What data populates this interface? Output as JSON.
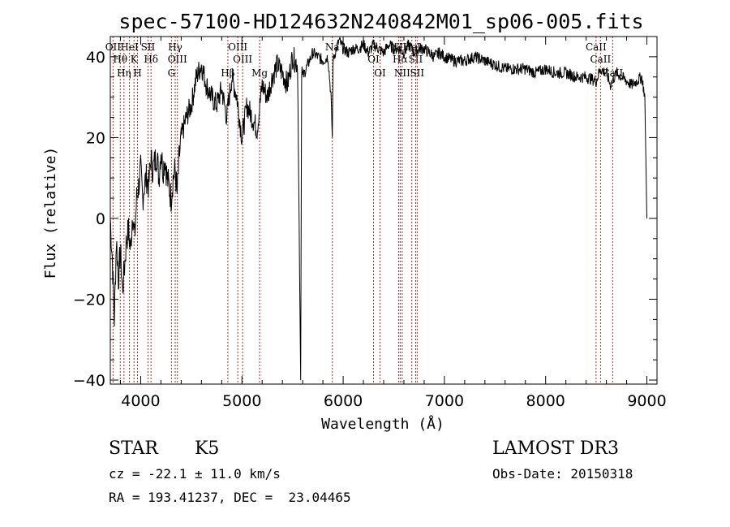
{
  "chart_data": {
    "type": "line",
    "title": "spec-57100-HD124632N240842M01_sp06-005.fits",
    "xlabel": "Wavelength (Å)",
    "ylabel": "Flux (relative)",
    "xlim": [
      3700,
      9100
    ],
    "ylim": [
      -41,
      45
    ],
    "xticks": [
      4000,
      5000,
      6000,
      7000,
      8000,
      9000
    ],
    "yticks": [
      -40,
      -20,
      0,
      20,
      40
    ],
    "colors": {
      "spectrum": "#000000",
      "lines": "#b22222"
    },
    "series": [
      {
        "name": "spectrum",
        "x": [
          3700,
          3720,
          3740,
          3760,
          3780,
          3800,
          3820,
          3840,
          3860,
          3880,
          3900,
          3920,
          3940,
          3960,
          3980,
          4000,
          4020,
          4040,
          4060,
          4080,
          4100,
          4120,
          4140,
          4160,
          4180,
          4200,
          4220,
          4240,
          4260,
          4280,
          4300,
          4320,
          4340,
          4360,
          4380,
          4400,
          4450,
          4500,
          4550,
          4600,
          4650,
          4700,
          4750,
          4800,
          4850,
          4900,
          4950,
          5000,
          5050,
          5100,
          5150,
          5200,
          5250,
          5300,
          5350,
          5400,
          5450,
          5500,
          5550,
          5580,
          5590,
          5600,
          5650,
          5700,
          5750,
          5800,
          5850,
          5880,
          5893,
          5900,
          5920,
          5960,
          6000,
          6050,
          6100,
          6150,
          6200,
          6250,
          6300,
          6350,
          6400,
          6450,
          6500,
          6550,
          6600,
          6650,
          6700,
          6750,
          6800,
          6850,
          6900,
          6950,
          7000,
          7100,
          7200,
          7300,
          7400,
          7500,
          7600,
          7700,
          7800,
          7900,
          8000,
          8100,
          8200,
          8300,
          8400,
          8500,
          8540,
          8600,
          8640,
          8700,
          8750,
          8800,
          8850,
          8900,
          8950,
          8980,
          9000
        ],
        "y": [
          0,
          -10,
          -25,
          -5,
          -15,
          -8,
          -18,
          -12,
          -5,
          -3,
          -8,
          2,
          -5,
          5,
          8,
          12,
          5,
          9,
          10,
          8,
          15,
          12,
          14,
          16,
          10,
          17,
          12,
          15,
          10,
          8,
          5,
          10,
          12,
          6,
          15,
          20,
          25,
          28,
          35,
          38,
          33,
          30,
          28,
          32,
          25,
          35,
          30,
          20,
          28,
          25,
          22,
          33,
          30,
          35,
          38,
          36,
          33,
          40,
          38,
          -40,
          38,
          35,
          38,
          41,
          40,
          39,
          40,
          30,
          20,
          39,
          41,
          44,
          42,
          41,
          42,
          42,
          43,
          41,
          43,
          42,
          41,
          43,
          42,
          42,
          41,
          43,
          41,
          42,
          42,
          41,
          40,
          41,
          40,
          39,
          39,
          40,
          39,
          38,
          37,
          37,
          37,
          36,
          37,
          36,
          36,
          35,
          35,
          34,
          37,
          36,
          33,
          36,
          35,
          34,
          33,
          34,
          35,
          30,
          0
        ]
      }
    ],
    "lines": [
      {
        "wave": 3727,
        "label": "OII"
      },
      {
        "wave": 3798,
        "label": "Hθ"
      },
      {
        "wave": 3835,
        "label": "Hη"
      },
      {
        "wave": 3889,
        "label": "HeI"
      },
      {
        "wave": 3934,
        "label": "K"
      },
      {
        "wave": 3969,
        "label": "H"
      },
      {
        "wave": 4072,
        "label": "SII"
      },
      {
        "wave": 4102,
        "label": "Hδ"
      },
      {
        "wave": 4304,
        "label": "G"
      },
      {
        "wave": 4341,
        "label": "Hγ"
      },
      {
        "wave": 4363,
        "label": "OIII"
      },
      {
        "wave": 4861,
        "label": "Hβ"
      },
      {
        "wave": 4959,
        "label": "OIII"
      },
      {
        "wave": 5007,
        "label": "OIII"
      },
      {
        "wave": 5175,
        "label": "Mg"
      },
      {
        "wave": 5893,
        "label": "Na"
      },
      {
        "wave": 6300,
        "label": "OI"
      },
      {
        "wave": 6364,
        "label": "OI"
      },
      {
        "wave": 6548,
        "label": "NII"
      },
      {
        "wave": 6563,
        "label": "Hα"
      },
      {
        "wave": 6583,
        "label": "NII"
      },
      {
        "wave": 6678,
        "label": "HeI"
      },
      {
        "wave": 6716,
        "label": "SII"
      },
      {
        "wave": 6731,
        "label": "SII"
      },
      {
        "wave": 8498,
        "label": "CaII"
      },
      {
        "wave": 8542,
        "label": "CaII"
      },
      {
        "wave": 8662,
        "label": "CaII"
      }
    ]
  },
  "info": {
    "class": "STAR",
    "subclass": "K5",
    "cz": "cz = -22.1 ± 11.0 km/s",
    "coords": "RA = 193.41237, DEC =  23.04465",
    "survey": "LAMOST DR3",
    "obsdate": "Obs-Date: 20150318"
  }
}
